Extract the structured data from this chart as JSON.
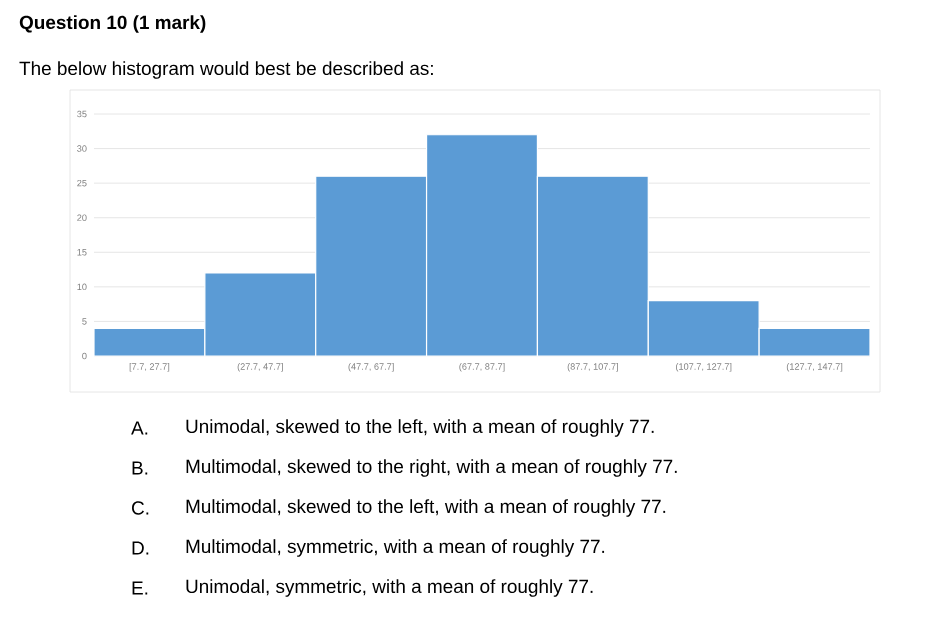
{
  "chart_data": {
    "type": "bar",
    "title": "Question 10 (1 mark)",
    "subtitle": "The below histogram would best be described as:",
    "categories": [
      "[7.7, 27.7]",
      "(27.7, 47.7]",
      "(47.7, 67.7]",
      "(67.7, 87.7]",
      "(87.7, 107.7]",
      "(107.7, 127.7]",
      "(127.7, 147.7]"
    ],
    "values": [
      4,
      12,
      26,
      32,
      26,
      8,
      4
    ],
    "color": "#5b9bd5",
    "ylim": [
      0,
      35
    ],
    "yticks": [
      0,
      5,
      10,
      15,
      20,
      25,
      30,
      35
    ],
    "grid": "y",
    "annotations": [
      "A.",
      "Unimodal, skewed to the left, with a mean of roughly 77.",
      "B.",
      "Multimodal, skewed to the right, with a mean of roughly 77.",
      "C.",
      "Multimodal, skewed to the left, with a mean of roughly 77.",
      "D.",
      "Multimodal, symmetric, with a mean of roughly 77.",
      "E.",
      "Unimodal, symmetric, with a mean of roughly 77."
    ]
  }
}
